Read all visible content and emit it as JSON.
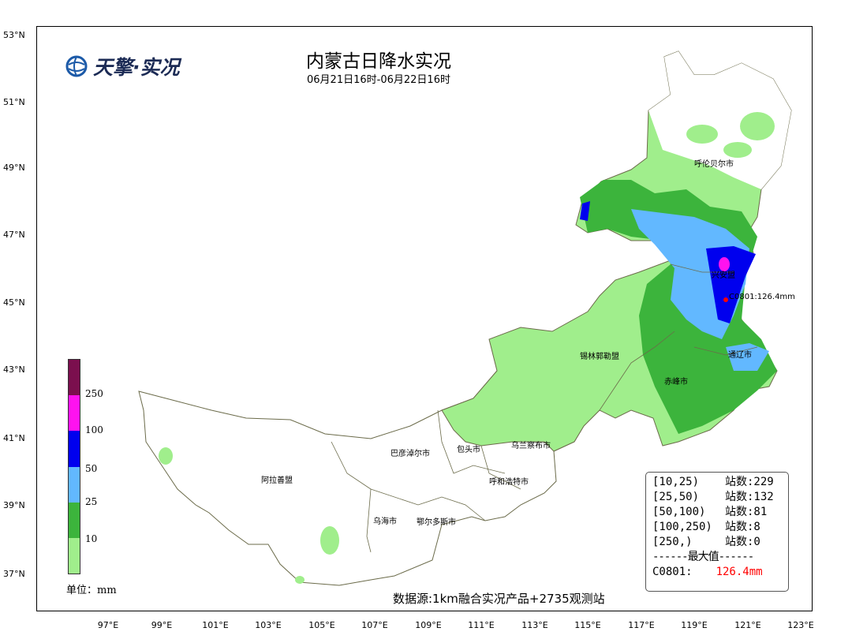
{
  "map": {
    "title": "内蒙古日降水实况",
    "subtitle": "06月21日16时-06月22日16时",
    "logo_text": "天擎·实况",
    "lat_ticks": [
      "53°N",
      "51°N",
      "49°N",
      "47°N",
      "45°N",
      "43°N",
      "41°N",
      "39°N",
      "37°N"
    ],
    "lon_ticks": [
      "97°E",
      "99°E",
      "101°E",
      "103°E",
      "105°E",
      "107°E",
      "109°E",
      "111°E",
      "113°E",
      "115°E",
      "117°E",
      "119°E",
      "121°E",
      "123°E"
    ],
    "cities": {
      "hulunbuir": "呼伦贝尔市",
      "xinganmeng": "兴安盟",
      "xilingol": "锡林郭勒盟",
      "tongliao": "通辽市",
      "chifeng": "赤峰市",
      "ulanqab": "乌兰察布市",
      "baotou": "包头市",
      "bayannur": "巴彦淖尔市",
      "hohhot": "呼和浩特市",
      "alxa": "阿拉善盟",
      "wuhai": "乌海市",
      "ordos": "鄂尔多斯市"
    },
    "max_station_label": "C0801:126.4mm",
    "source": "数据源:1km融合实况产品+2735观测站"
  },
  "legend": {
    "labels": [
      "250",
      "100",
      "50",
      "25",
      "10"
    ],
    "unit": "单位：mm",
    "colors": {
      "c250": "#7b0f4e",
      "c100": "#ff12ef",
      "c50": "#0000ee",
      "c25": "#62b8ff",
      "c10": "#3cb43c",
      "c0": "#a0ee8c"
    }
  },
  "stats": {
    "rows": [
      {
        "range": "[10,25)",
        "count": "站数:229"
      },
      {
        "range": "[25,50)",
        "count": "站数:132"
      },
      {
        "range": "[50,100)",
        "count": "站数:81"
      },
      {
        "range": "[100,250)",
        "count": "站数:8"
      },
      {
        "range": "[250,)",
        "count": "站数:0"
      }
    ],
    "divider": "------最大值------",
    "max_station": "C0801:",
    "max_value": "126.4mm"
  }
}
